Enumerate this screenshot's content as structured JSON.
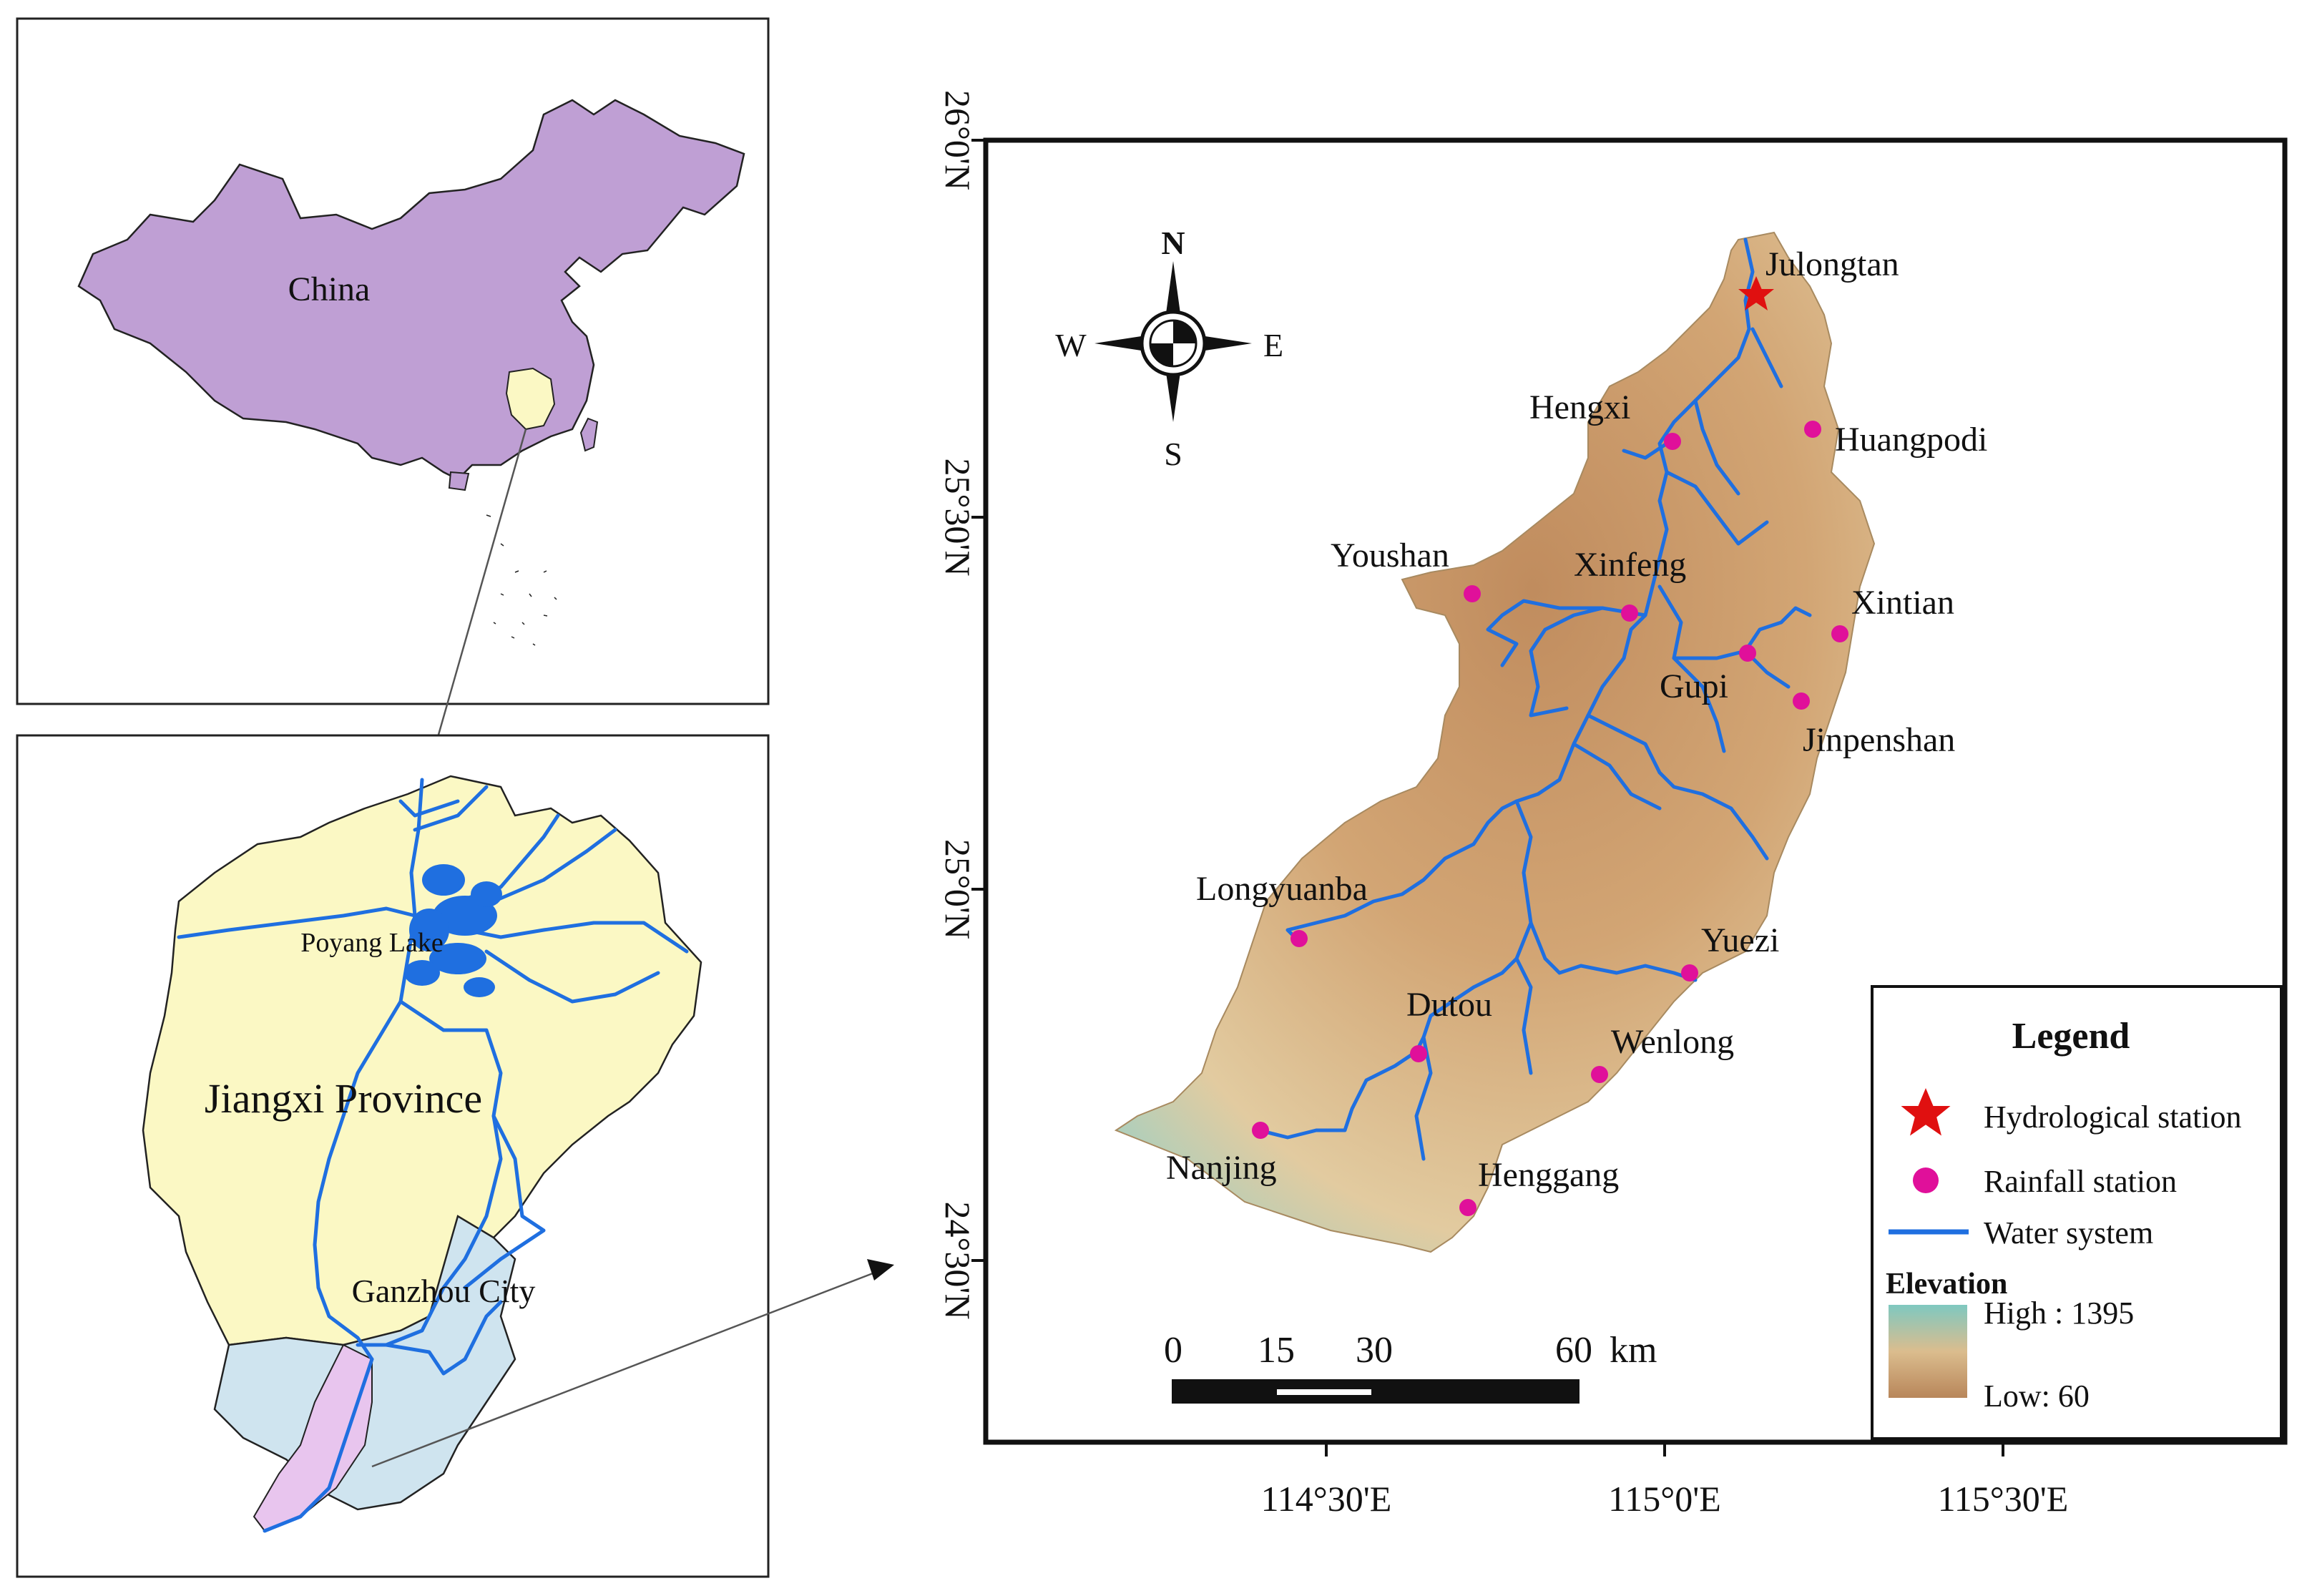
{
  "china_panel": {
    "label": "China"
  },
  "jiangxi_panel": {
    "lake_label": "Poyang Lake",
    "province_label": "Jiangxi Province",
    "city_label": "Ganzhou City"
  },
  "main_map": {
    "lat_labels": [
      "26°0'N",
      "25°30'N",
      "25°0'N",
      "24°30'N"
    ],
    "lon_labels": [
      "114°30'E",
      "115°0'E",
      "115°30'E"
    ],
    "compass": {
      "n": "N",
      "s": "S",
      "e": "E",
      "w": "W"
    },
    "hydrological_station": {
      "name": "Julongtan"
    },
    "rainfall_stations": [
      {
        "name": "Hengxi"
      },
      {
        "name": "Huangpodi"
      },
      {
        "name": "Youshan"
      },
      {
        "name": "Xinfeng"
      },
      {
        "name": "Xintian"
      },
      {
        "name": "Gupi"
      },
      {
        "name": "Jinpenshan"
      },
      {
        "name": "Longyuanba"
      },
      {
        "name": "Yuezi"
      },
      {
        "name": "Dutou"
      },
      {
        "name": "Wenlong"
      },
      {
        "name": "Nanjing"
      },
      {
        "name": "Henggang"
      }
    ],
    "scale_bar": {
      "ticks": [
        "0",
        "15",
        "30",
        "60"
      ],
      "unit": "km"
    }
  },
  "legend": {
    "title": "Legend",
    "items": [
      "Hydrological station",
      "Rainfall station",
      "Water system"
    ],
    "elevation_title": "Elevation",
    "high_label": "High : 1395",
    "low_label": "Low: 60"
  },
  "colors": {
    "china_fill": "#bf9fd4",
    "jiangxi_fill": "#fbf8c4",
    "ganzhou_fill": "#cfe4ef",
    "basin_fill": "#e8c5ee",
    "water": "#1f6fe0",
    "rainfall_marker": "#e0109a",
    "hydro_marker": "#e01010",
    "elev_high": "#7fc8c0",
    "elev_mid": "#dbbd8e",
    "elev_low": "#b8865a"
  }
}
